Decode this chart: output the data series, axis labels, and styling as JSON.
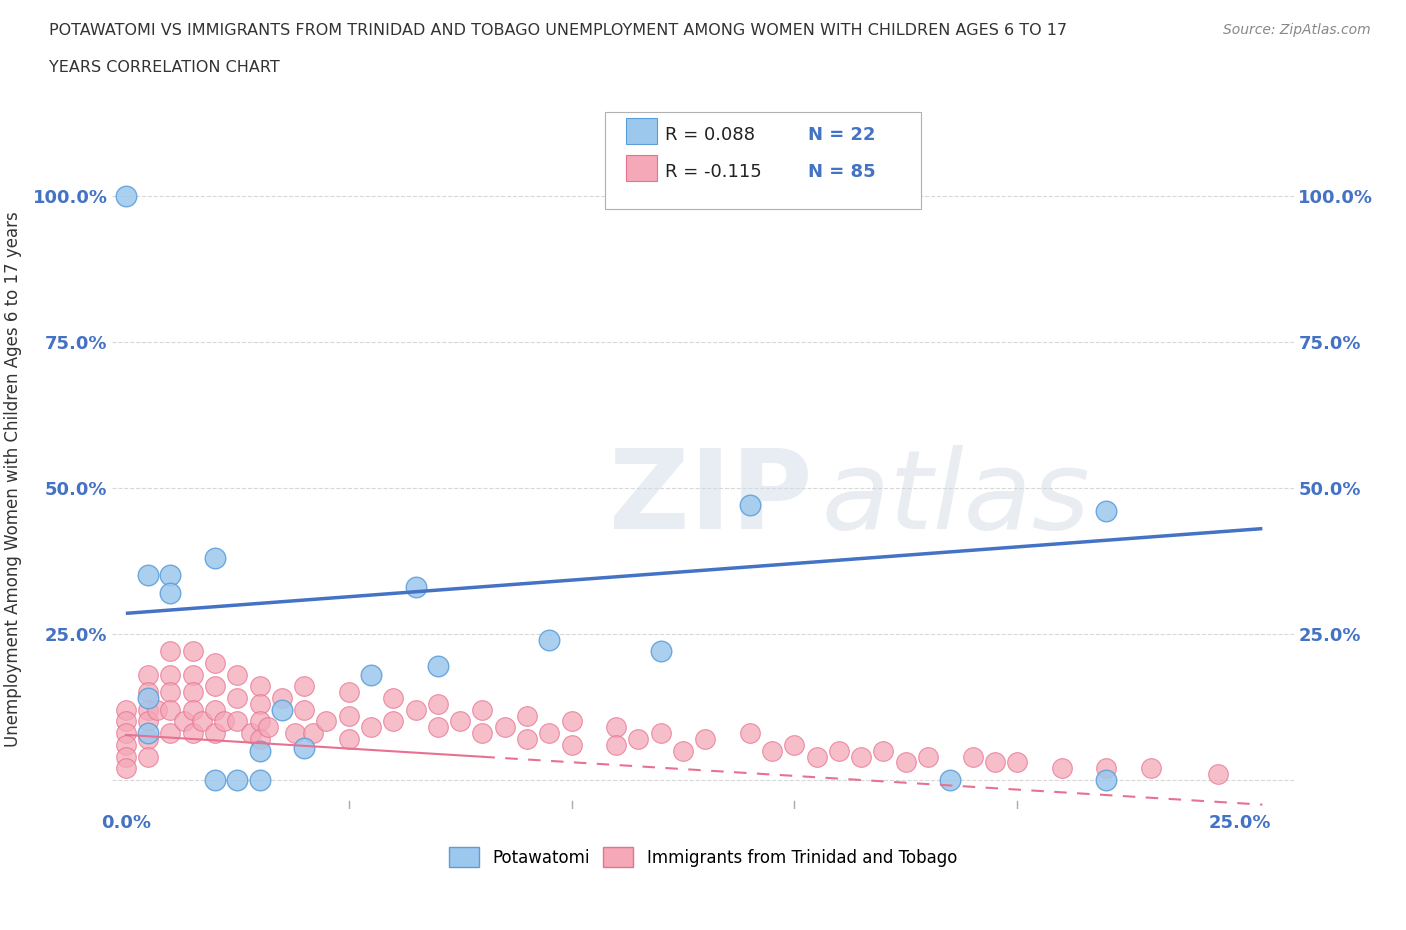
{
  "title_line1": "POTAWATOMI VS IMMIGRANTS FROM TRINIDAD AND TOBAGO UNEMPLOYMENT AMONG WOMEN WITH CHILDREN AGES 6 TO 17",
  "title_line2": "YEARS CORRELATION CHART",
  "source": "Source: ZipAtlas.com",
  "ylabel": "Unemployment Among Women with Children Ages 6 to 17 years",
  "xlim": [
    -0.003,
    0.262
  ],
  "ylim": [
    -0.05,
    1.08
  ],
  "x_ticks": [
    0.0,
    0.25
  ],
  "y_ticks": [
    0.0,
    0.25,
    0.5,
    0.75,
    1.0
  ],
  "potawatomi_x": [
    0.02,
    0.0,
    0.005,
    0.01,
    0.01,
    0.005,
    0.005,
    0.14,
    0.22,
    0.055,
    0.065,
    0.12,
    0.07,
    0.03,
    0.035,
    0.04,
    0.02,
    0.03,
    0.025,
    0.095,
    0.22,
    0.185
  ],
  "potawatomi_y": [
    0.38,
    1.0,
    0.35,
    0.35,
    0.32,
    0.14,
    0.08,
    0.47,
    0.46,
    0.18,
    0.33,
    0.22,
    0.195,
    0.05,
    0.12,
    0.055,
    0.0,
    0.0,
    0.0,
    0.24,
    0.0,
    0.0
  ],
  "trinidad_x": [
    0.0,
    0.0,
    0.0,
    0.0,
    0.0,
    0.0,
    0.005,
    0.005,
    0.005,
    0.005,
    0.005,
    0.005,
    0.007,
    0.01,
    0.01,
    0.01,
    0.01,
    0.01,
    0.013,
    0.015,
    0.015,
    0.015,
    0.015,
    0.015,
    0.017,
    0.02,
    0.02,
    0.02,
    0.02,
    0.022,
    0.025,
    0.025,
    0.025,
    0.028,
    0.03,
    0.03,
    0.03,
    0.03,
    0.032,
    0.035,
    0.038,
    0.04,
    0.04,
    0.042,
    0.045,
    0.05,
    0.05,
    0.05,
    0.055,
    0.06,
    0.06,
    0.065,
    0.07,
    0.07,
    0.075,
    0.08,
    0.08,
    0.085,
    0.09,
    0.09,
    0.095,
    0.1,
    0.1,
    0.11,
    0.11,
    0.115,
    0.12,
    0.125,
    0.13,
    0.14,
    0.145,
    0.15,
    0.155,
    0.16,
    0.165,
    0.17,
    0.175,
    0.18,
    0.19,
    0.195,
    0.2,
    0.21,
    0.22,
    0.23,
    0.245
  ],
  "trinidad_y": [
    0.12,
    0.1,
    0.08,
    0.06,
    0.04,
    0.02,
    0.18,
    0.15,
    0.12,
    0.1,
    0.07,
    0.04,
    0.12,
    0.22,
    0.18,
    0.15,
    0.12,
    0.08,
    0.1,
    0.22,
    0.18,
    0.15,
    0.12,
    0.08,
    0.1,
    0.2,
    0.16,
    0.12,
    0.08,
    0.1,
    0.18,
    0.14,
    0.1,
    0.08,
    0.16,
    0.13,
    0.1,
    0.07,
    0.09,
    0.14,
    0.08,
    0.16,
    0.12,
    0.08,
    0.1,
    0.15,
    0.11,
    0.07,
    0.09,
    0.14,
    0.1,
    0.12,
    0.13,
    0.09,
    0.1,
    0.12,
    0.08,
    0.09,
    0.11,
    0.07,
    0.08,
    0.1,
    0.06,
    0.09,
    0.06,
    0.07,
    0.08,
    0.05,
    0.07,
    0.08,
    0.05,
    0.06,
    0.04,
    0.05,
    0.04,
    0.05,
    0.03,
    0.04,
    0.04,
    0.03,
    0.03,
    0.02,
    0.02,
    0.02,
    0.01
  ],
  "potawatomi_color": "#9DC8ED",
  "trinidad_color": "#F4A8B8",
  "potawatomi_edge": "#5B9DD9",
  "trinidad_edge": "#E87090",
  "trend_blue_color": "#4472C4",
  "trend_pink_color": "#E87090",
  "R_potawatomi": 0.088,
  "N_potawatomi": 22,
  "R_trinidad": -0.115,
  "N_trinidad": 85,
  "watermark": "ZIPatlas",
  "background_color": "#ffffff",
  "grid_color": "#c8c8c8"
}
